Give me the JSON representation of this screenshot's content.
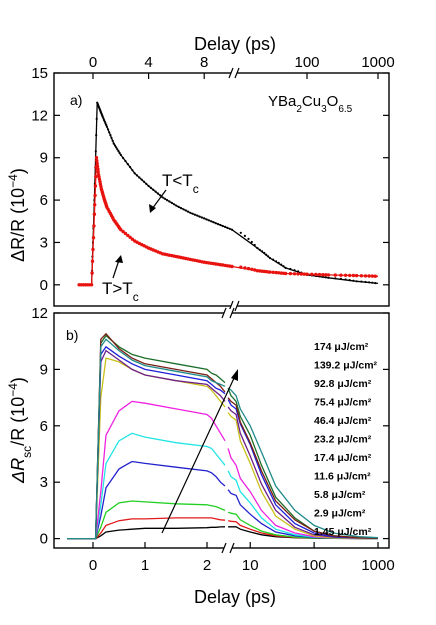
{
  "colors": {
    "below_tc": "#000000",
    "above_tc": "#e8120f"
  },
  "chart_data": [
    {
      "type": "line",
      "panel_label": "a)",
      "top_xlabel": "Delay (ps)",
      "top_ticks": [
        "0",
        "4",
        "8",
        "100",
        "1000"
      ],
      "ylabel": "ΔR/R (10⁻⁴)",
      "ylabel_main": "ΔR/R (10",
      "ylabel_sup": "−4",
      "ylabel_end": ")",
      "yticks": [
        "15",
        "12",
        "9",
        "6",
        "3",
        "0"
      ],
      "ylim": [
        -1.5,
        15
      ],
      "x_axis": "linear from -1 to 10 ps, then axis break, then log from 10 to 1000 ps",
      "material_label": {
        "main": "YBa",
        "s1": "2",
        "m2": "Cu",
        "s2": "3",
        "m3": "O",
        "s3": "6.5"
      },
      "annotations": {
        "below": {
          "main": "T<T",
          "sub": "c"
        },
        "above": {
          "main": "T>T",
          "sub": "c"
        }
      },
      "series": [
        {
          "label": "T<T_c",
          "x": [
            -1,
            -0.1,
            0.1,
            0.3,
            0.5,
            0.7,
            1,
            1.5,
            2,
            3,
            4,
            5,
            6,
            7,
            8,
            9,
            10,
            20,
            30,
            50,
            100,
            200,
            500,
            1000
          ],
          "y": [
            0,
            0,
            6,
            12.9,
            12.4,
            11.9,
            11.2,
            10.0,
            9.2,
            7.9,
            7.0,
            6.2,
            5.6,
            5.1,
            4.7,
            4.3,
            3.9,
            2.6,
            1.9,
            1.2,
            0.7,
            0.5,
            0.25,
            0.1
          ]
        },
        {
          "label": "T>T_c",
          "x": [
            -1,
            -0.1,
            0.1,
            0.25,
            0.4,
            0.6,
            0.8,
            1,
            1.5,
            2,
            3,
            4,
            5,
            6,
            7,
            8,
            9,
            10,
            20,
            30,
            50,
            100,
            200,
            500,
            1000
          ],
          "y": [
            0,
            0,
            5,
            9.0,
            7.8,
            6.8,
            6.1,
            5.5,
            4.6,
            3.9,
            3.1,
            2.6,
            2.2,
            2.0,
            1.8,
            1.6,
            1.45,
            1.3,
            1.0,
            0.9,
            0.8,
            0.75,
            0.7,
            0.65,
            0.6
          ]
        }
      ]
    },
    {
      "type": "line",
      "panel_label": "b)",
      "xlabel": "Delay (ps)",
      "xticks": [
        "0",
        "1",
        "2",
        "10",
        "100",
        "1000"
      ],
      "ylabel_main": "ΔR",
      "ylabel_sub": "sc",
      "ylabel_mid": "/R (10",
      "ylabel_sup": "−4",
      "ylabel_end": ")",
      "yticks": [
        "12",
        "9",
        "6",
        "3",
        "0"
      ],
      "ylim": [
        -0.5,
        12
      ],
      "x_axis": "linear from -0.5 to 4 ps, then axis break, then log from 5 to 1000 ps",
      "fluence_unit": "μJ/cm²",
      "series": [
        {
          "name": "174 μJ/cm²",
          "color": "#1f8a8a",
          "values": [
            0,
            0,
            10.2,
            10.6,
            10.0,
            9.5,
            9.2,
            8.9,
            8.6,
            8.4,
            8.3,
            8.2,
            8.1,
            8.0,
            7.9,
            7.6,
            6.9,
            6.0,
            4.6,
            2.8,
            1.5,
            0.7,
            0.3,
            0.1,
            0.05
          ]
        },
        {
          "name": "139.2 μJ/cm²",
          "color": "#7a1f14",
          "values": [
            0,
            0,
            10.6,
            10.9,
            10.1,
            9.6,
            9.3,
            9.0,
            8.7,
            8.5,
            8.3,
            8.1,
            7.8,
            7.5,
            7.3,
            7.1,
            6.2,
            5.1,
            3.6,
            2.0,
            1.0,
            0.4,
            0.15,
            0.05,
            0.02
          ]
        },
        {
          "name": "92.8 μJ/cm²",
          "color": "#1c6e2a",
          "values": [
            0,
            0,
            10.4,
            10.8,
            10.2,
            9.8,
            9.6,
            9.3,
            9.0,
            8.8,
            8.7,
            8.5,
            8.3,
            8.0,
            7.6,
            7.3,
            6.5,
            5.5,
            3.9,
            2.2,
            1.1,
            0.4,
            0.15,
            0.05,
            0.02
          ]
        },
        {
          "name": "75.4 μJ/cm²",
          "color": "#1f1fd9",
          "values": [
            0,
            0,
            9.8,
            10.2,
            9.7,
            9.3,
            9.0,
            8.7,
            8.4,
            8.2,
            8.0,
            7.9,
            7.7,
            7.4,
            7.1,
            6.9,
            6.1,
            5.0,
            3.4,
            1.8,
            0.8,
            0.3,
            0.1,
            0.04,
            0.02
          ]
        },
        {
          "name": "46.4 μJ/cm²",
          "color": "#6e1f8a",
          "values": [
            0,
            0,
            9.4,
            10.0,
            9.5,
            9.0,
            8.7,
            8.4,
            8.2,
            8.0,
            7.8,
            7.6,
            7.3,
            7.0,
            6.8,
            6.6,
            5.6,
            4.4,
            2.9,
            1.5,
            0.6,
            0.2,
            0.08,
            0.03,
            0.02
          ]
        },
        {
          "name": "23.2 μJ/cm²",
          "color": "#c9c01a",
          "values": [
            0,
            0,
            7.5,
            9.6,
            9.4,
            9.0,
            8.7,
            8.4,
            8.1,
            7.9,
            7.6,
            7.3,
            7.0,
            6.7,
            6.5,
            6.3,
            5.2,
            4.0,
            2.5,
            1.2,
            0.5,
            0.15,
            0.05,
            0.02,
            0.01
          ]
        },
        {
          "name": "17.4 μJ/cm²",
          "color": "#ee22e0",
          "values": [
            0,
            0,
            2.5,
            5.5,
            6.8,
            7.3,
            7.2,
            6.9,
            6.6,
            6.4,
            6.0,
            5.6,
            5.2,
            4.8,
            4.3,
            3.9,
            3.2,
            2.5,
            1.5,
            0.7,
            0.3,
            0.1,
            0.04,
            0.02,
            0.01
          ]
        },
        {
          "name": "11.6 μJ/cm²",
          "color": "#22e4e4",
          "values": [
            0,
            0,
            1.8,
            4.0,
            5.2,
            5.6,
            5.4,
            5.1,
            4.9,
            4.8,
            4.5,
            4.2,
            3.9,
            3.6,
            3.3,
            3.1,
            2.5,
            1.9,
            1.1,
            0.5,
            0.2,
            0.08,
            0.03,
            0.02,
            0.01
          ]
        },
        {
          "name": "5.8 μJ/cm²",
          "color": "#2222cc",
          "values": [
            0,
            0,
            1.2,
            2.7,
            3.7,
            4.1,
            4.0,
            3.8,
            3.6,
            3.5,
            3.3,
            3.0,
            2.8,
            2.6,
            2.4,
            2.3,
            1.8,
            1.3,
            0.8,
            0.35,
            0.15,
            0.06,
            0.03,
            0.02,
            0.01
          ]
        },
        {
          "name": "2.9 μJ/cm²",
          "color": "#22d022",
          "values": [
            0,
            0,
            0.6,
            1.4,
            1.9,
            2.0,
            1.95,
            1.85,
            1.8,
            1.75,
            1.7,
            1.6,
            1.5,
            1.4,
            1.35,
            1.3,
            1.0,
            0.7,
            0.4,
            0.2,
            0.08,
            0.03,
            0.02,
            0.01,
            0.01
          ]
        },
        {
          "name": "1.45 μJ/cm²",
          "color": "#e01a1a",
          "values": [
            0,
            0,
            0.3,
            0.7,
            0.95,
            1.05,
            1.05,
            1.1,
            1.1,
            1.1,
            1.05,
            1.0,
            0.98,
            0.95,
            0.92,
            0.9,
            0.7,
            0.5,
            0.3,
            0.15,
            0.06,
            0.03,
            0.02,
            0.01,
            0.01
          ]
        },
        {
          "name": "",
          "color": "#000000",
          "values": [
            0,
            0,
            0.15,
            0.35,
            0.45,
            0.5,
            0.55,
            0.55,
            0.58,
            0.6,
            0.6,
            0.62,
            0.63,
            0.63,
            0.63,
            0.63,
            0.5,
            0.35,
            0.2,
            0.1,
            0.05,
            0.02,
            0.01,
            0.0,
            0.0
          ]
        }
      ],
      "x": [
        -0.5,
        0.05,
        0.15,
        0.25,
        0.5,
        0.75,
        1,
        1.5,
        2,
        2.5,
        3,
        3.5,
        4,
        4.5,
        5,
        6,
        7,
        10,
        15,
        25,
        50,
        100,
        200,
        500,
        1000
      ]
    }
  ]
}
